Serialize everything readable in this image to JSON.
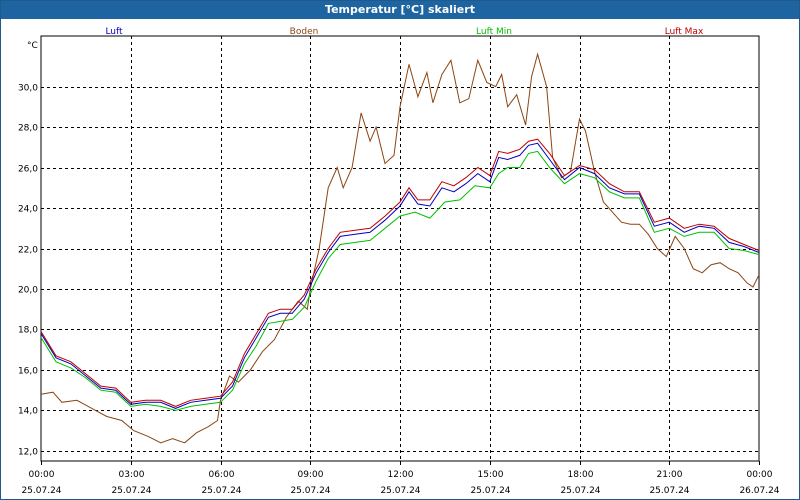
{
  "window": {
    "title": "Temperatur [°C] skaliert",
    "title_color": "#ffffff",
    "title_bg": "#1e64a0"
  },
  "chart_data": {
    "type": "line",
    "title": "Temperatur [°C] skaliert",
    "ylabel": "°C",
    "xlabel": "",
    "ylim": [
      11.5,
      32.5
    ],
    "xlim": [
      0,
      24
    ],
    "grid": true,
    "legend_position": "top",
    "y_ticks": [
      12,
      14,
      16,
      18,
      20,
      22,
      24,
      26,
      28,
      30
    ],
    "y_tick_labels": [
      "12,0",
      "14,0",
      "16,0",
      "18,0",
      "20,0",
      "22,0",
      "24,0",
      "26,0",
      "28,0",
      "30,0"
    ],
    "x_ticks": [
      0,
      3,
      6,
      9,
      12,
      15,
      18,
      21,
      24
    ],
    "x_tick_labels": [
      [
        "00:00",
        "25.07.24"
      ],
      [
        "03:00",
        "25.07.24"
      ],
      [
        "06:00",
        "25.07.24"
      ],
      [
        "09:00",
        "25.07.24"
      ],
      [
        "12:00",
        "25.07.24"
      ],
      [
        "15:00",
        "25.07.24"
      ],
      [
        "18:00",
        "25.07.24"
      ],
      [
        "21:00",
        "25.07.24"
      ],
      [
        "00:00",
        "26.07.24"
      ]
    ],
    "series": [
      {
        "name": "Boden",
        "color": "#8b4513",
        "points": [
          [
            0,
            14.8
          ],
          [
            0.4,
            14.9
          ],
          [
            0.7,
            14.4
          ],
          [
            1.2,
            14.5
          ],
          [
            1.7,
            14.1
          ],
          [
            2.2,
            13.7
          ],
          [
            2.7,
            13.5
          ],
          [
            3.1,
            13.0
          ],
          [
            3.6,
            12.7
          ],
          [
            4.0,
            12.4
          ],
          [
            4.4,
            12.6
          ],
          [
            4.8,
            12.4
          ],
          [
            5.2,
            12.9
          ],
          [
            5.6,
            13.2
          ],
          [
            5.9,
            13.5
          ],
          [
            6.0,
            14.5
          ],
          [
            6.3,
            15.7
          ],
          [
            6.6,
            15.4
          ],
          [
            7.0,
            16.0
          ],
          [
            7.4,
            16.9
          ],
          [
            7.8,
            17.5
          ],
          [
            8.2,
            18.6
          ],
          [
            8.6,
            19.4
          ],
          [
            8.9,
            19.0
          ],
          [
            9.0,
            20.0
          ],
          [
            9.3,
            22.0
          ],
          [
            9.6,
            25.0
          ],
          [
            9.9,
            26.0
          ],
          [
            10.1,
            25.0
          ],
          [
            10.4,
            26.0
          ],
          [
            10.7,
            28.7
          ],
          [
            11.0,
            27.3
          ],
          [
            11.2,
            28.0
          ],
          [
            11.5,
            26.2
          ],
          [
            11.8,
            26.6
          ],
          [
            12.0,
            29.0
          ],
          [
            12.3,
            31.1
          ],
          [
            12.6,
            29.5
          ],
          [
            12.9,
            30.7
          ],
          [
            13.1,
            29.2
          ],
          [
            13.4,
            30.6
          ],
          [
            13.7,
            31.3
          ],
          [
            14.0,
            29.2
          ],
          [
            14.3,
            29.4
          ],
          [
            14.6,
            31.3
          ],
          [
            14.9,
            30.2
          ],
          [
            15.2,
            30.0
          ],
          [
            15.4,
            30.6
          ],
          [
            15.6,
            29.0
          ],
          [
            15.9,
            29.6
          ],
          [
            16.2,
            28.1
          ],
          [
            16.4,
            30.5
          ],
          [
            16.6,
            31.6
          ],
          [
            16.9,
            30.0
          ],
          [
            17.1,
            26.5
          ],
          [
            17.4,
            25.5
          ],
          [
            17.7,
            25.8
          ],
          [
            18.0,
            28.4
          ],
          [
            18.2,
            27.8
          ],
          [
            18.5,
            25.8
          ],
          [
            18.8,
            24.3
          ],
          [
            19.1,
            23.8
          ],
          [
            19.4,
            23.3
          ],
          [
            19.7,
            23.2
          ],
          [
            20.0,
            23.2
          ],
          [
            20.3,
            22.7
          ],
          [
            20.6,
            22.0
          ],
          [
            20.9,
            21.6
          ],
          [
            21.2,
            22.6
          ],
          [
            21.5,
            22.0
          ],
          [
            21.8,
            21.0
          ],
          [
            22.1,
            20.8
          ],
          [
            22.4,
            21.2
          ],
          [
            22.7,
            21.3
          ],
          [
            23.0,
            21.0
          ],
          [
            23.3,
            20.8
          ],
          [
            23.6,
            20.3
          ],
          [
            23.8,
            20.1
          ],
          [
            24.0,
            20.7
          ]
        ]
      },
      {
        "name": "Luft Min",
        "color": "#00c000",
        "points": [
          [
            0,
            17.6
          ],
          [
            0.5,
            16.4
          ],
          [
            1.0,
            16.1
          ],
          [
            1.5,
            15.6
          ],
          [
            2.0,
            15.0
          ],
          [
            2.5,
            14.9
          ],
          [
            3.0,
            14.2
          ],
          [
            3.5,
            14.3
          ],
          [
            4.0,
            14.2
          ],
          [
            4.5,
            14.0
          ],
          [
            5.0,
            14.2
          ],
          [
            5.5,
            14.3
          ],
          [
            6.0,
            14.4
          ],
          [
            6.4,
            15.0
          ],
          [
            6.8,
            16.3
          ],
          [
            7.2,
            17.2
          ],
          [
            7.6,
            18.3
          ],
          [
            8.0,
            18.4
          ],
          [
            8.4,
            18.5
          ],
          [
            8.8,
            19.1
          ],
          [
            9.2,
            20.4
          ],
          [
            9.6,
            21.5
          ],
          [
            10.0,
            22.2
          ],
          [
            10.5,
            22.3
          ],
          [
            11.0,
            22.4
          ],
          [
            11.5,
            23.0
          ],
          [
            12.0,
            23.6
          ],
          [
            12.5,
            23.8
          ],
          [
            13.0,
            23.5
          ],
          [
            13.5,
            24.3
          ],
          [
            14.0,
            24.4
          ],
          [
            14.5,
            25.1
          ],
          [
            15.0,
            25.0
          ],
          [
            15.3,
            25.7
          ],
          [
            15.6,
            26.0
          ],
          [
            16.0,
            26.0
          ],
          [
            16.3,
            26.7
          ],
          [
            16.6,
            26.8
          ],
          [
            17.0,
            26.0
          ],
          [
            17.5,
            25.2
          ],
          [
            18.0,
            25.7
          ],
          [
            18.5,
            25.5
          ],
          [
            19.0,
            24.8
          ],
          [
            19.5,
            24.5
          ],
          [
            20.0,
            24.5
          ],
          [
            20.5,
            22.8
          ],
          [
            21.0,
            23.0
          ],
          [
            21.5,
            22.6
          ],
          [
            22.0,
            22.8
          ],
          [
            22.5,
            22.8
          ],
          [
            23.0,
            22.0
          ],
          [
            23.5,
            21.9
          ],
          [
            24.0,
            21.7
          ]
        ]
      },
      {
        "name": "Luft",
        "color": "#0000c0",
        "points": [
          [
            0,
            17.8
          ],
          [
            0.5,
            16.6
          ],
          [
            1.0,
            16.3
          ],
          [
            1.5,
            15.7
          ],
          [
            2.0,
            15.1
          ],
          [
            2.5,
            15.0
          ],
          [
            3.0,
            14.3
          ],
          [
            3.5,
            14.4
          ],
          [
            4.0,
            14.4
          ],
          [
            4.5,
            14.1
          ],
          [
            5.0,
            14.4
          ],
          [
            5.5,
            14.5
          ],
          [
            6.0,
            14.6
          ],
          [
            6.4,
            15.2
          ],
          [
            6.8,
            16.6
          ],
          [
            7.2,
            17.6
          ],
          [
            7.6,
            18.6
          ],
          [
            8.0,
            18.8
          ],
          [
            8.4,
            18.8
          ],
          [
            8.8,
            19.5
          ],
          [
            9.2,
            20.8
          ],
          [
            9.6,
            21.8
          ],
          [
            10.0,
            22.6
          ],
          [
            10.5,
            22.7
          ],
          [
            11.0,
            22.8
          ],
          [
            11.5,
            23.4
          ],
          [
            12.0,
            24.1
          ],
          [
            12.3,
            24.8
          ],
          [
            12.6,
            24.2
          ],
          [
            13.0,
            24.1
          ],
          [
            13.4,
            25.0
          ],
          [
            13.8,
            24.8
          ],
          [
            14.2,
            25.2
          ],
          [
            14.6,
            25.7
          ],
          [
            15.0,
            25.3
          ],
          [
            15.3,
            26.5
          ],
          [
            15.6,
            26.4
          ],
          [
            16.0,
            26.6
          ],
          [
            16.3,
            27.1
          ],
          [
            16.6,
            27.2
          ],
          [
            17.0,
            26.4
          ],
          [
            17.5,
            25.4
          ],
          [
            18.0,
            26.0
          ],
          [
            18.5,
            25.7
          ],
          [
            19.0,
            25.0
          ],
          [
            19.5,
            24.7
          ],
          [
            20.0,
            24.7
          ],
          [
            20.5,
            23.1
          ],
          [
            21.0,
            23.3
          ],
          [
            21.5,
            22.8
          ],
          [
            22.0,
            23.1
          ],
          [
            22.5,
            23.0
          ],
          [
            23.0,
            22.3
          ],
          [
            23.5,
            22.1
          ],
          [
            24.0,
            21.8
          ]
        ]
      },
      {
        "name": "Luft Max",
        "color": "#c00000",
        "points": [
          [
            0,
            17.9
          ],
          [
            0.5,
            16.7
          ],
          [
            1.0,
            16.4
          ],
          [
            1.5,
            15.8
          ],
          [
            2.0,
            15.2
          ],
          [
            2.5,
            15.1
          ],
          [
            3.0,
            14.4
          ],
          [
            3.5,
            14.5
          ],
          [
            4.0,
            14.5
          ],
          [
            4.5,
            14.2
          ],
          [
            5.0,
            14.5
          ],
          [
            5.5,
            14.6
          ],
          [
            6.0,
            14.7
          ],
          [
            6.4,
            15.4
          ],
          [
            6.8,
            16.8
          ],
          [
            7.2,
            17.8
          ],
          [
            7.6,
            18.8
          ],
          [
            8.0,
            19.0
          ],
          [
            8.4,
            19.0
          ],
          [
            8.8,
            19.7
          ],
          [
            9.2,
            21.0
          ],
          [
            9.6,
            22.0
          ],
          [
            10.0,
            22.8
          ],
          [
            10.5,
            22.9
          ],
          [
            11.0,
            23.0
          ],
          [
            11.5,
            23.6
          ],
          [
            12.0,
            24.3
          ],
          [
            12.3,
            25.0
          ],
          [
            12.6,
            24.4
          ],
          [
            13.0,
            24.4
          ],
          [
            13.4,
            25.3
          ],
          [
            13.8,
            25.1
          ],
          [
            14.2,
            25.5
          ],
          [
            14.6,
            26.0
          ],
          [
            15.0,
            25.6
          ],
          [
            15.3,
            26.8
          ],
          [
            15.6,
            26.7
          ],
          [
            16.0,
            26.9
          ],
          [
            16.3,
            27.3
          ],
          [
            16.6,
            27.4
          ],
          [
            17.0,
            26.7
          ],
          [
            17.5,
            25.6
          ],
          [
            18.0,
            26.1
          ],
          [
            18.5,
            25.9
          ],
          [
            19.0,
            25.2
          ],
          [
            19.5,
            24.8
          ],
          [
            20.0,
            24.8
          ],
          [
            20.5,
            23.3
          ],
          [
            21.0,
            23.5
          ],
          [
            21.5,
            23.0
          ],
          [
            22.0,
            23.2
          ],
          [
            22.5,
            23.1
          ],
          [
            23.0,
            22.5
          ],
          [
            23.5,
            22.2
          ],
          [
            24.0,
            21.9
          ]
        ]
      }
    ],
    "legend": [
      {
        "name": "Luft",
        "color": "#0000c0"
      },
      {
        "name": "Boden",
        "color": "#8b4513"
      },
      {
        "name": "Luft Min",
        "color": "#00c000"
      },
      {
        "name": "Luft Max",
        "color": "#c00000"
      }
    ]
  }
}
